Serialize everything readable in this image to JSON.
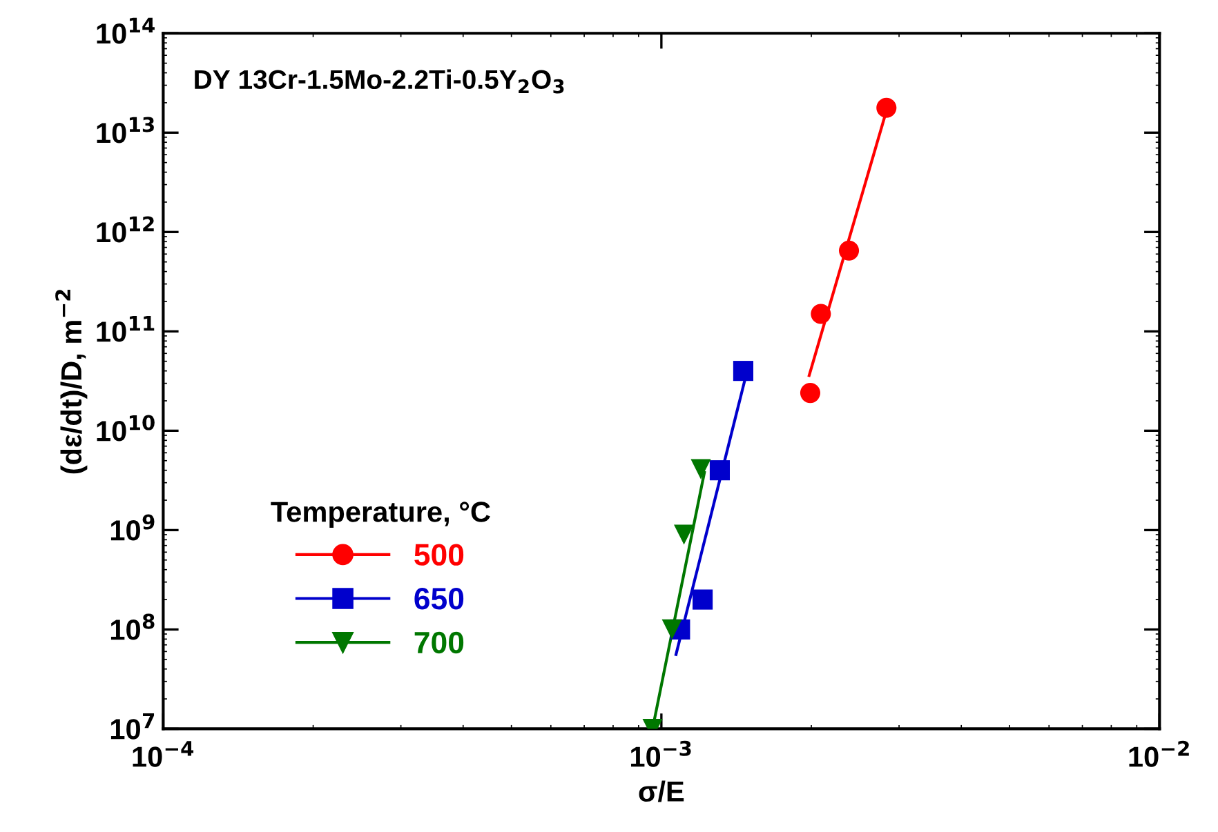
{
  "chart_data": {
    "type": "scatter",
    "xlabel": "σ/E",
    "ylabel": "(dε/dt)/D, m$^{−2}$",
    "annotations": [
      "DY 13Cr-1.5Mo-2.2Ti-0.5Y$_{2}$O$_{3}$"
    ],
    "legend_title": "Temperature, °C",
    "legend": "bottom left",
    "log": "xy",
    "grid": false,
    "xlim": [
      0.0001,
      0.01
    ],
    "xticks": [
      {
        "value": 0.0001,
        "label": "10$^{−4}$"
      },
      {
        "value": 0.001,
        "label": "10$^{−3}$"
      },
      {
        "value": 0.01,
        "label": "10$^{−2}$"
      }
    ],
    "ylim": [
      10000000,
      100000000000000
    ],
    "yticks": [
      {
        "value": 10000000,
        "label": "10$^{7}$"
      },
      {
        "value": 100000000,
        "label": "10$^{8}$"
      },
      {
        "value": 1000000000,
        "label": "10$^{9}$"
      },
      {
        "value": 10000000000,
        "label": "10$^{10}$"
      },
      {
        "value": 100000000000,
        "label": "10$^{11}$"
      },
      {
        "value": 1000000000000,
        "label": "10$^{12}$"
      },
      {
        "value": 10000000000000,
        "label": "10$^{13}$"
      },
      {
        "value": 100000000000000,
        "label": "10$^{14}$"
      }
    ],
    "series": [
      {
        "name": "500",
        "color": "#ff0000",
        "marker": "circle",
        "x": [
          0.00199,
          0.00209,
          0.00238,
          0.00283
        ],
        "values": [
          24000000000,
          150000000000,
          650000000000,
          17800000000000
        ]
      },
      {
        "name": "650",
        "color": "#0000cc",
        "marker": "square",
        "x": [
          0.00109,
          0.00121,
          0.00131,
          0.00146
        ],
        "values": [
          100000000,
          200000000,
          4000000000,
          40000000000
        ]
      },
      {
        "name": "700",
        "color": "#007700",
        "marker": "triangle",
        "x": [
          0.00096,
          0.00105,
          0.00111,
          0.0012
        ],
        "values": [
          10000000,
          100000000,
          900000000,
          4100000000
        ]
      },
      {
        "type": "line",
        "color": "#ff0000",
        "x": [
          0.00198,
          0.00281
        ],
        "values": [
          36000000000,
          14700000000000
        ]
      },
      {
        "type": "line",
        "color": "#0000cc",
        "x": [
          0.00107,
          0.00147
        ],
        "values": [
          56000000,
          32000000000
        ]
      },
      {
        "type": "line",
        "color": "#007700",
        "x": [
          0.00096,
          0.00122
        ],
        "values": [
          10000000,
          3800000000
        ]
      }
    ]
  }
}
